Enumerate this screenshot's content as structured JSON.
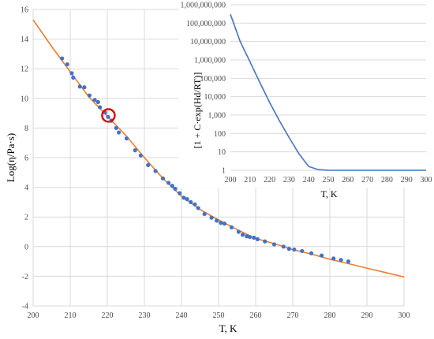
{
  "chart_data": [
    {
      "type": "scatter",
      "xlabel": "T, K",
      "ylabel": "Log(η/Pa·s)",
      "xlim": [
        200,
        300
      ],
      "ylim": [
        -4,
        16
      ],
      "xticks": [
        "200",
        "210",
        "220",
        "230",
        "240",
        "250",
        "260",
        "270",
        "280",
        "290",
        "300"
      ],
      "yticks": [
        "-4",
        "-2",
        "0",
        "2",
        "4",
        "6",
        "8",
        "10",
        "12",
        "14",
        "16"
      ],
      "grid": true,
      "colors": {
        "points": "#4472c4",
        "fit": "#ed7d31",
        "highlight": "#e00000"
      },
      "series": [
        {
          "type": "scatter",
          "x": [
            207.8,
            209.2,
            210.4,
            210.8,
            212.6,
            213.8,
            215.2,
            216.6,
            217.5,
            218.0,
            219.4,
            220.2,
            221.1,
            222.4,
            223.1,
            225.2,
            227.5,
            229.0,
            231.0,
            233.0,
            235.0,
            236.5,
            237.5,
            238.3,
            239.5,
            240.6,
            241.5,
            242.5,
            243.6,
            244.5,
            246.2,
            248.1,
            249.5,
            250.6,
            251.6,
            253.5,
            255.4,
            256.5,
            257.6,
            258.4,
            259.5,
            260.5,
            262.5,
            265.0,
            267.5,
            269.0,
            270.4,
            272.5,
            275.0,
            277.8,
            281.0,
            283.0,
            285.0
          ],
          "y": [
            12.7,
            12.3,
            11.7,
            11.4,
            10.8,
            10.75,
            10.2,
            9.9,
            9.75,
            9.4,
            9.05,
            8.75,
            8.5,
            8.0,
            7.7,
            7.3,
            6.5,
            6.15,
            5.5,
            5.1,
            4.6,
            4.3,
            4.1,
            3.9,
            3.6,
            3.3,
            3.2,
            3.0,
            2.85,
            2.6,
            2.2,
            1.95,
            1.75,
            1.6,
            1.55,
            1.3,
            1.0,
            0.8,
            0.7,
            0.65,
            0.6,
            0.5,
            0.35,
            0.15,
            0.0,
            -0.15,
            -0.2,
            -0.3,
            -0.45,
            -0.6,
            -0.8,
            -0.9,
            -1.0
          ]
        },
        {
          "type": "line",
          "x": [
            200,
            205,
            210,
            215,
            220,
            225,
            230,
            235,
            240,
            245,
            250,
            255,
            260,
            265,
            270,
            275,
            280,
            285,
            290,
            295,
            300
          ],
          "y": [
            15.3,
            13.5,
            11.8,
            10.1,
            8.8,
            7.5,
            6.0,
            4.6,
            3.4,
            2.5,
            1.8,
            1.15,
            0.55,
            0.2,
            -0.2,
            -0.5,
            -0.85,
            -1.15,
            -1.45,
            -1.75,
            -2.05
          ]
        }
      ],
      "highlight": {
        "x": 220.3,
        "y": 8.85
      }
    },
    {
      "type": "line",
      "xlabel": "T, K",
      "ylabel": "[1 + C·exp(Hd/RT)]",
      "xlim": [
        200,
        300
      ],
      "yscale": "log",
      "ylim": [
        1,
        1000000000
      ],
      "xticks": [
        "200",
        "210",
        "220",
        "230",
        "240",
        "250",
        "260",
        "270",
        "280",
        "290",
        "300"
      ],
      "ytick_values": [
        1,
        10,
        100,
        1000,
        10000,
        100000,
        1000000,
        10000000,
        100000000,
        1000000000
      ],
      "yticks": [
        "1",
        "10",
        "100",
        "1,000",
        "10,000",
        "100,000",
        "1,000,000",
        "10,000,000",
        "100,000,000",
        "1,000,000,000"
      ],
      "grid": true,
      "colors": {
        "line": "#4472c4"
      },
      "series": [
        {
          "x": [
            200,
            205,
            210,
            215,
            220,
            225,
            230,
            235,
            240,
            245,
            250,
            252,
            254,
            256,
            260,
            270,
            280,
            290,
            300
          ],
          "y": [
            300000000,
            10000000,
            800000,
            60000,
            5000,
            500,
            60,
            8,
            1.6,
            1.08,
            1.01,
            1.004,
            1.002,
            1.0,
            1.0,
            1.0,
            1.0,
            1.0,
            1.0
          ]
        }
      ]
    }
  ]
}
